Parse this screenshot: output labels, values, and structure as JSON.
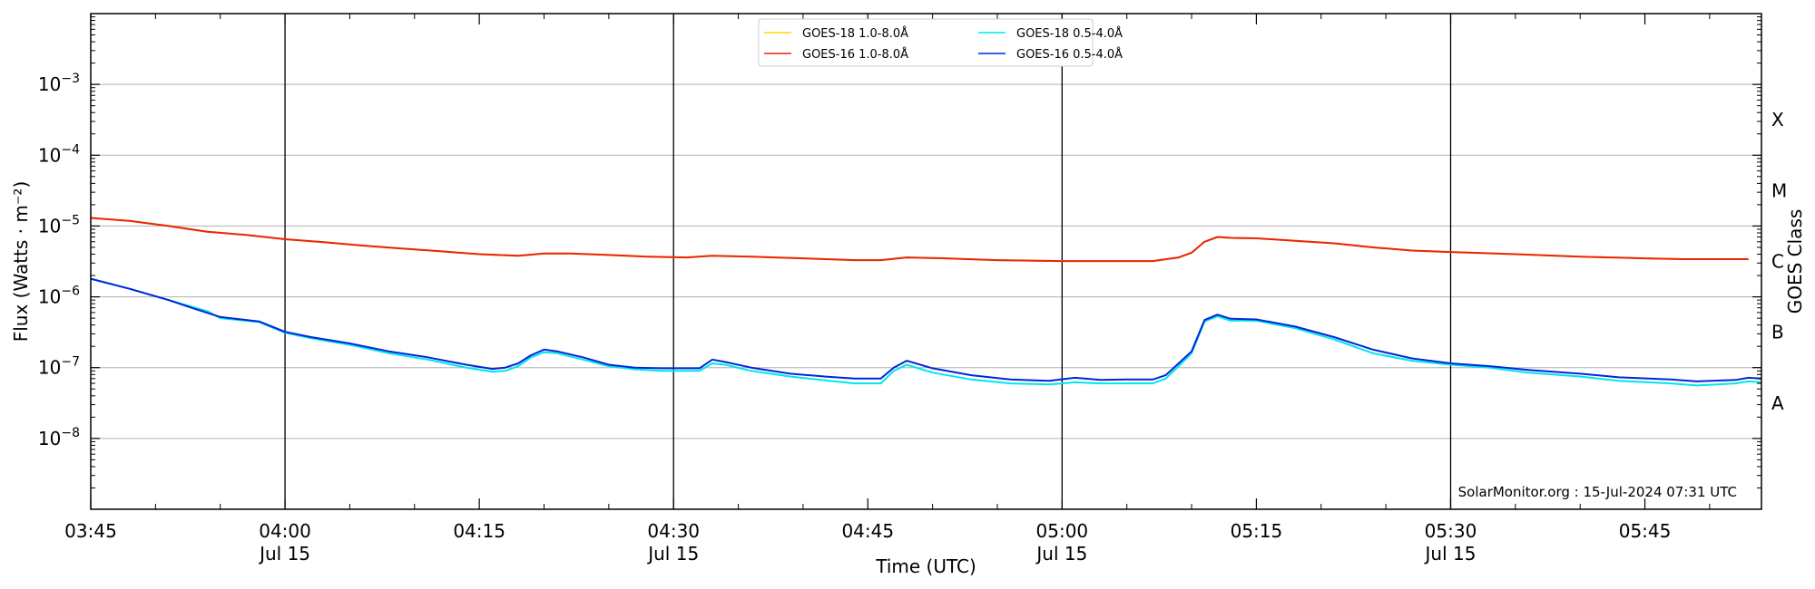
{
  "chart_data": {
    "type": "line",
    "title": "",
    "xlabel": "Time (UTC)",
    "ylabel": "Flux (Watts · m⁻²)",
    "y2label": "GOES Class",
    "yscale": "log",
    "ylim": [
      1e-09,
      0.01
    ],
    "xlim": [
      "03:45",
      "05:54"
    ],
    "grid": "horizontal at decades",
    "legend_position": "top-center",
    "credit": "SolarMonitor.org : 15-Jul-2024 07:31 UTC",
    "x_ticks": [
      {
        "t": "03:45",
        "label": "03:45",
        "sub": ""
      },
      {
        "t": "04:00",
        "label": "04:00",
        "sub": "Jul 15"
      },
      {
        "t": "04:15",
        "label": "04:15",
        "sub": ""
      },
      {
        "t": "04:30",
        "label": "04:30",
        "sub": "Jul 15"
      },
      {
        "t": "04:45",
        "label": "04:45",
        "sub": ""
      },
      {
        "t": "05:00",
        "label": "05:00",
        "sub": "Jul 15"
      },
      {
        "t": "05:15",
        "label": "05:15",
        "sub": ""
      },
      {
        "t": "05:30",
        "label": "05:30",
        "sub": "Jul 15"
      },
      {
        "t": "05:45",
        "label": "05:45",
        "sub": ""
      }
    ],
    "vertical_lines": [
      "04:00",
      "04:30",
      "05:00",
      "05:30"
    ],
    "y_ticks": [
      {
        "base": "10",
        "exp": "−3",
        "value": 0.001
      },
      {
        "base": "10",
        "exp": "−4",
        "value": 0.0001
      },
      {
        "base": "10",
        "exp": "−5",
        "value": 1e-05
      },
      {
        "base": "10",
        "exp": "−6",
        "value": 1e-06
      },
      {
        "base": "10",
        "exp": "−7",
        "value": 1e-07
      },
      {
        "base": "10",
        "exp": "−8",
        "value": 1e-08
      }
    ],
    "goes_classes": [
      {
        "label": "X",
        "value": 0.000316
      },
      {
        "label": "M",
        "value": 3.16e-05
      },
      {
        "label": "C",
        "value": 3.16e-06
      },
      {
        "label": "B",
        "value": 3.16e-07
      },
      {
        "label": "A",
        "value": 3.16e-08
      }
    ],
    "legend": [
      {
        "name": "GOES-18 1.0-8.0Å",
        "color": "#ffd700"
      },
      {
        "name": "GOES-16 1.0-8.0Å",
        "color": "#e8250a"
      },
      {
        "name": "GOES-18 0.5-4.0Å",
        "color": "#00e5ee"
      },
      {
        "name": "GOES-16 0.5-4.0Å",
        "color": "#0026d8"
      }
    ],
    "series": [
      {
        "name": "GOES-18 1.0-8.0Å",
        "color": "#ffd700",
        "points": [
          [
            "03:45",
            1.3e-05
          ],
          [
            "03:48",
            1.18e-05
          ],
          [
            "03:51",
            1e-05
          ],
          [
            "03:54",
            8.3e-06
          ],
          [
            "03:57",
            7.5e-06
          ],
          [
            "04:00",
            6.5e-06
          ],
          [
            "04:03",
            5.9e-06
          ],
          [
            "04:06",
            5.3e-06
          ],
          [
            "04:09",
            4.8e-06
          ],
          [
            "04:12",
            4.4e-06
          ],
          [
            "04:15",
            4e-06
          ],
          [
            "04:18",
            3.8e-06
          ],
          [
            "04:20",
            4.1e-06
          ],
          [
            "04:22",
            4.1e-06
          ],
          [
            "04:25",
            3.9e-06
          ],
          [
            "04:28",
            3.7e-06
          ],
          [
            "04:31",
            3.6e-06
          ],
          [
            "04:33",
            3.8e-06
          ],
          [
            "04:36",
            3.7e-06
          ],
          [
            "04:40",
            3.5e-06
          ],
          [
            "04:44",
            3.3e-06
          ],
          [
            "04:46",
            3.3e-06
          ],
          [
            "04:48",
            3.6e-06
          ],
          [
            "04:51",
            3.5e-06
          ],
          [
            "04:55",
            3.3e-06
          ],
          [
            "05:00",
            3.2e-06
          ],
          [
            "05:04",
            3.2e-06
          ],
          [
            "05:07",
            3.2e-06
          ],
          [
            "05:09",
            3.6e-06
          ],
          [
            "05:10",
            4.2e-06
          ],
          [
            "05:11",
            6e-06
          ],
          [
            "05:12",
            7e-06
          ],
          [
            "05:13",
            6.8e-06
          ],
          [
            "05:15",
            6.7e-06
          ],
          [
            "05:18",
            6.2e-06
          ],
          [
            "05:21",
            5.7e-06
          ],
          [
            "05:24",
            5e-06
          ],
          [
            "05:27",
            4.5e-06
          ],
          [
            "05:30",
            4.3e-06
          ],
          [
            "05:35",
            4e-06
          ],
          [
            "05:40",
            3.7e-06
          ],
          [
            "05:45",
            3.5e-06
          ],
          [
            "05:48",
            3.4e-06
          ],
          [
            "05:53",
            3.4e-06
          ]
        ]
      },
      {
        "name": "GOES-16 1.0-8.0Å",
        "color": "#e8250a",
        "points": [
          [
            "03:45",
            1.3e-05
          ],
          [
            "03:48",
            1.18e-05
          ],
          [
            "03:51",
            1e-05
          ],
          [
            "03:54",
            8.3e-06
          ],
          [
            "03:57",
            7.5e-06
          ],
          [
            "04:00",
            6.5e-06
          ],
          [
            "04:03",
            5.9e-06
          ],
          [
            "04:06",
            5.3e-06
          ],
          [
            "04:09",
            4.8e-06
          ],
          [
            "04:12",
            4.4e-06
          ],
          [
            "04:15",
            4e-06
          ],
          [
            "04:18",
            3.8e-06
          ],
          [
            "04:20",
            4.1e-06
          ],
          [
            "04:22",
            4.1e-06
          ],
          [
            "04:25",
            3.9e-06
          ],
          [
            "04:28",
            3.7e-06
          ],
          [
            "04:31",
            3.6e-06
          ],
          [
            "04:33",
            3.8e-06
          ],
          [
            "04:36",
            3.7e-06
          ],
          [
            "04:40",
            3.5e-06
          ],
          [
            "04:44",
            3.3e-06
          ],
          [
            "04:46",
            3.3e-06
          ],
          [
            "04:48",
            3.6e-06
          ],
          [
            "04:51",
            3.5e-06
          ],
          [
            "04:55",
            3.3e-06
          ],
          [
            "05:00",
            3.2e-06
          ],
          [
            "05:04",
            3.2e-06
          ],
          [
            "05:07",
            3.2e-06
          ],
          [
            "05:09",
            3.6e-06
          ],
          [
            "05:10",
            4.2e-06
          ],
          [
            "05:11",
            6e-06
          ],
          [
            "05:12",
            7e-06
          ],
          [
            "05:13",
            6.8e-06
          ],
          [
            "05:15",
            6.7e-06
          ],
          [
            "05:18",
            6.2e-06
          ],
          [
            "05:21",
            5.7e-06
          ],
          [
            "05:24",
            5e-06
          ],
          [
            "05:27",
            4.5e-06
          ],
          [
            "05:30",
            4.3e-06
          ],
          [
            "05:35",
            4e-06
          ],
          [
            "05:40",
            3.7e-06
          ],
          [
            "05:45",
            3.5e-06
          ],
          [
            "05:48",
            3.4e-06
          ],
          [
            "05:53",
            3.4e-06
          ]
        ]
      },
      {
        "name": "GOES-18 0.5-4.0Å",
        "color": "#00e5ee",
        "points": [
          [
            "03:45",
            1.8e-06
          ],
          [
            "03:48",
            1.3e-06
          ],
          [
            "03:51",
            9e-07
          ],
          [
            "03:54",
            6.3e-07
          ],
          [
            "03:55",
            5e-07
          ],
          [
            "03:58",
            4.4e-07
          ],
          [
            "04:00",
            3.1e-07
          ],
          [
            "04:02",
            2.6e-07
          ],
          [
            "04:05",
            2.1e-07
          ],
          [
            "04:08",
            1.6e-07
          ],
          [
            "04:11",
            1.3e-07
          ],
          [
            "04:14",
            1e-07
          ],
          [
            "04:16",
            8.8e-08
          ],
          [
            "04:17",
            9e-08
          ],
          [
            "04:18",
            1.05e-07
          ],
          [
            "04:19",
            1.4e-07
          ],
          [
            "04:20",
            1.65e-07
          ],
          [
            "04:21",
            1.6e-07
          ],
          [
            "04:23",
            1.3e-07
          ],
          [
            "04:25",
            1.05e-07
          ],
          [
            "04:27",
            9.5e-08
          ],
          [
            "04:29",
            9e-08
          ],
          [
            "04:32",
            9e-08
          ],
          [
            "04:33",
            1.15e-07
          ],
          [
            "04:34",
            1.1e-07
          ],
          [
            "04:36",
            9e-08
          ],
          [
            "04:39",
            7.5e-08
          ],
          [
            "04:42",
            6.5e-08
          ],
          [
            "04:44",
            6e-08
          ],
          [
            "04:46",
            6e-08
          ],
          [
            "04:47",
            9e-08
          ],
          [
            "04:48",
            1.1e-07
          ],
          [
            "04:50",
            8.5e-08
          ],
          [
            "04:53",
            6.8e-08
          ],
          [
            "04:56",
            6e-08
          ],
          [
            "04:59",
            5.8e-08
          ],
          [
            "05:01",
            6.2e-08
          ],
          [
            "05:03",
            6e-08
          ],
          [
            "05:05",
            6e-08
          ],
          [
            "05:07",
            6e-08
          ],
          [
            "05:08",
            7e-08
          ],
          [
            "05:09",
            1.05e-07
          ],
          [
            "05:10",
            1.6e-07
          ],
          [
            "05:11",
            4.5e-07
          ],
          [
            "05:12",
            5.3e-07
          ],
          [
            "05:13",
            4.6e-07
          ],
          [
            "05:15",
            4.6e-07
          ],
          [
            "05:18",
            3.6e-07
          ],
          [
            "05:21",
            2.5e-07
          ],
          [
            "05:24",
            1.6e-07
          ],
          [
            "05:27",
            1.25e-07
          ],
          [
            "05:30",
            1.1e-07
          ],
          [
            "05:33",
            1e-07
          ],
          [
            "05:36",
            8.5e-08
          ],
          [
            "05:40",
            7.5e-08
          ],
          [
            "05:43",
            6.5e-08
          ],
          [
            "05:47",
            6e-08
          ],
          [
            "05:49",
            5.6e-08
          ],
          [
            "05:52",
            6e-08
          ],
          [
            "05:53",
            6.4e-08
          ],
          [
            "05:54",
            6.2e-08
          ]
        ]
      },
      {
        "name": "GOES-16 0.5-4.0Å",
        "color": "#0026d8",
        "points": [
          [
            "03:45",
            1.8e-06
          ],
          [
            "03:48",
            1.3e-06
          ],
          [
            "03:51",
            9e-07
          ],
          [
            "03:53",
            6.8e-07
          ],
          [
            "03:55",
            5.2e-07
          ],
          [
            "03:58",
            4.5e-07
          ],
          [
            "04:00",
            3.2e-07
          ],
          [
            "04:02",
            2.7e-07
          ],
          [
            "04:05",
            2.2e-07
          ],
          [
            "04:08",
            1.7e-07
          ],
          [
            "04:11",
            1.4e-07
          ],
          [
            "04:14",
            1.1e-07
          ],
          [
            "04:16",
            9.6e-08
          ],
          [
            "04:17",
            1e-07
          ],
          [
            "04:18",
            1.15e-07
          ],
          [
            "04:19",
            1.5e-07
          ],
          [
            "04:20",
            1.8e-07
          ],
          [
            "04:21",
            1.7e-07
          ],
          [
            "04:23",
            1.4e-07
          ],
          [
            "04:25",
            1.1e-07
          ],
          [
            "04:27",
            1e-07
          ],
          [
            "04:29",
            9.8e-08
          ],
          [
            "04:32",
            9.8e-08
          ],
          [
            "04:33",
            1.3e-07
          ],
          [
            "04:34",
            1.2e-07
          ],
          [
            "04:36",
            1e-07
          ],
          [
            "04:39",
            8.2e-08
          ],
          [
            "04:42",
            7.4e-08
          ],
          [
            "04:44",
            7e-08
          ],
          [
            "04:46",
            7e-08
          ],
          [
            "04:47",
            1e-07
          ],
          [
            "04:48",
            1.25e-07
          ],
          [
            "04:50",
            9.8e-08
          ],
          [
            "04:53",
            7.8e-08
          ],
          [
            "04:56",
            6.8e-08
          ],
          [
            "04:59",
            6.5e-08
          ],
          [
            "05:01",
            7.2e-08
          ],
          [
            "05:03",
            6.7e-08
          ],
          [
            "05:05",
            6.8e-08
          ],
          [
            "05:07",
            6.8e-08
          ],
          [
            "05:08",
            7.8e-08
          ],
          [
            "05:09",
            1.15e-07
          ],
          [
            "05:10",
            1.7e-07
          ],
          [
            "05:11",
            4.7e-07
          ],
          [
            "05:12",
            5.6e-07
          ],
          [
            "05:13",
            4.9e-07
          ],
          [
            "05:15",
            4.8e-07
          ],
          [
            "05:18",
            3.8e-07
          ],
          [
            "05:21",
            2.7e-07
          ],
          [
            "05:24",
            1.8e-07
          ],
          [
            "05:27",
            1.35e-07
          ],
          [
            "05:30",
            1.15e-07
          ],
          [
            "05:33",
            1.05e-07
          ],
          [
            "05:36",
            9.3e-08
          ],
          [
            "05:40",
            8.2e-08
          ],
          [
            "05:43",
            7.3e-08
          ],
          [
            "05:47",
            6.8e-08
          ],
          [
            "05:49",
            6.4e-08
          ],
          [
            "05:52",
            6.7e-08
          ],
          [
            "05:53",
            7.2e-08
          ],
          [
            "05:54",
            7e-08
          ]
        ]
      }
    ]
  }
}
